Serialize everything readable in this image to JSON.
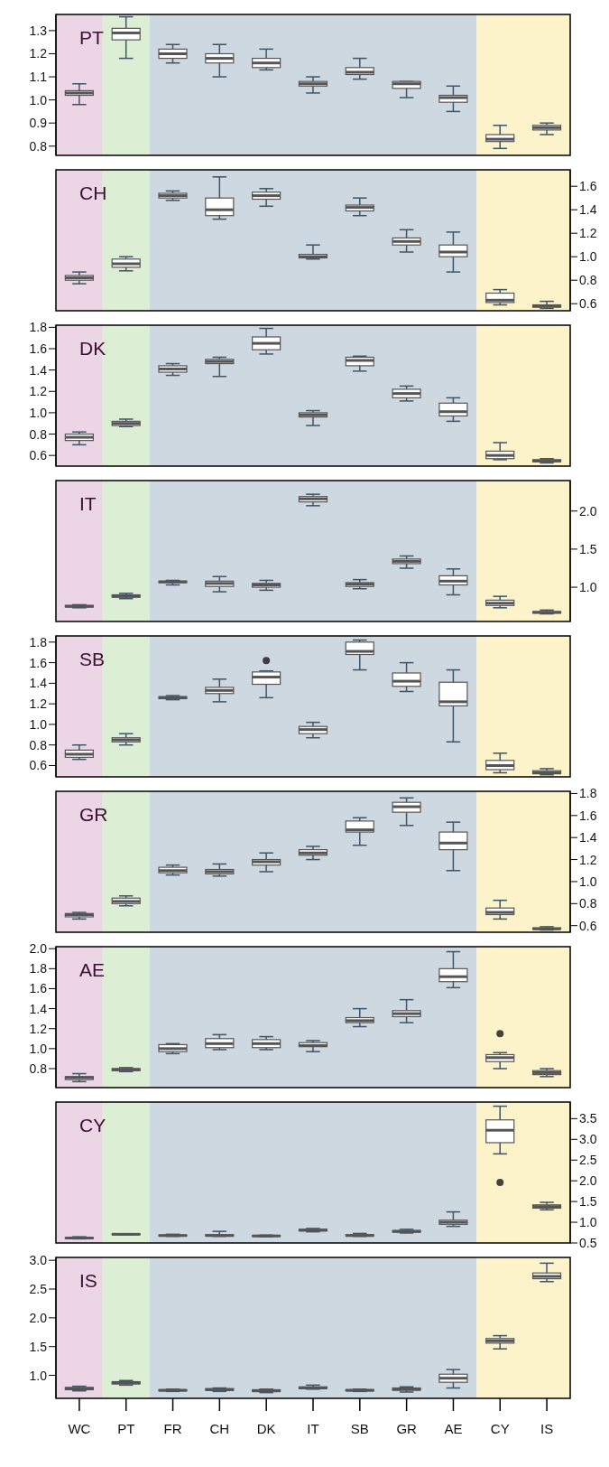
{
  "chart_data": [
    {
      "type": "box",
      "title": "PT",
      "tick_labels": "y",
      "categories": [
        "WC",
        "PT",
        "FR",
        "CH",
        "DK",
        "IT",
        "SB",
        "GR",
        "AE",
        "CY",
        "IS"
      ],
      "ylim": [
        0.76,
        1.37
      ],
      "yticks": [
        0.8,
        0.9,
        {
          "value": 1,
          "label": "1.0"
        },
        1.1,
        1.2,
        1.3
      ],
      "bands": [
        {
          "axis": "x",
          "from": "WC",
          "to": "WC",
          "color": "#ecd5e5"
        },
        {
          "axis": "x",
          "from": "PT",
          "to": "PT",
          "color": "#dcefd4"
        },
        {
          "axis": "x",
          "from": "FR",
          "to": "AE",
          "color": "#cdd8e1"
        },
        {
          "axis": "x",
          "from": "CY",
          "to": "IS",
          "color": "#fcf3cb"
        }
      ],
      "boxes": [
        {
          "low": 0.98,
          "q1": 1.02,
          "median": 1.03,
          "q3": 1.04,
          "high": 1.07
        },
        {
          "low": 1.18,
          "q1": 1.26,
          "median": 1.29,
          "q3": 1.31,
          "high": 1.36
        },
        {
          "low": 1.16,
          "q1": 1.18,
          "median": 1.2,
          "q3": 1.22,
          "high": 1.24
        },
        {
          "low": 1.1,
          "q1": 1.16,
          "median": 1.18,
          "q3": 1.2,
          "high": 1.24
        },
        {
          "low": 1.13,
          "q1": 1.14,
          "median": 1.16,
          "q3": 1.18,
          "high": 1.22
        },
        {
          "low": 1.03,
          "q1": 1.06,
          "median": 1.07,
          "q3": 1.08,
          "high": 1.1
        },
        {
          "low": 1.09,
          "q1": 1.11,
          "median": 1.12,
          "q3": 1.14,
          "high": 1.18
        },
        {
          "low": 1.01,
          "q1": 1.05,
          "median": 1.07,
          "q3": 1.08,
          "high": 1.08
        },
        {
          "low": 0.95,
          "q1": 0.99,
          "median": 1.01,
          "q3": 1.02,
          "high": 1.06
        },
        {
          "low": 0.79,
          "q1": 0.82,
          "median": 0.83,
          "q3": 0.85,
          "high": 0.89
        },
        {
          "low": 0.85,
          "q1": 0.87,
          "median": 0.88,
          "q3": 0.89,
          "high": 0.9
        }
      ]
    },
    {
      "type": "box",
      "title": "CH",
      "tick_labels": "y",
      "categories": [
        "WC",
        "PT",
        "FR",
        "CH",
        "DK",
        "IT",
        "SB",
        "GR",
        "AE",
        "CY",
        "IS"
      ],
      "y2lim": [
        0.54,
        1.74
      ],
      "y2ticks": [
        0.6,
        0.8,
        {
          "value": 1,
          "label": "1.0"
        },
        1.2,
        1.4,
        1.6
      ],
      "bands": [
        {
          "axis": "x",
          "from": "WC",
          "to": "WC",
          "color": "#ecd5e5"
        },
        {
          "axis": "x",
          "from": "PT",
          "to": "PT",
          "color": "#dcefd4"
        },
        {
          "axis": "x",
          "from": "FR",
          "to": "AE",
          "color": "#cdd8e1"
        },
        {
          "axis": "x",
          "from": "CY",
          "to": "IS",
          "color": "#fcf3cb"
        }
      ],
      "series": [
        {
          "axis": "y2",
          "boxes": [
            {
              "low": 0.77,
              "q1": 0.8,
              "median": 0.82,
              "q3": 0.84,
              "high": 0.87
            },
            {
              "low": 0.88,
              "q1": 0.91,
              "median": 0.94,
              "q3": 0.98,
              "high": 1.0
            },
            {
              "low": 1.48,
              "q1": 1.5,
              "median": 1.52,
              "q3": 1.54,
              "high": 1.56
            },
            {
              "low": 1.32,
              "q1": 1.35,
              "median": 1.4,
              "q3": 1.5,
              "high": 1.68
            },
            {
              "low": 1.43,
              "q1": 1.49,
              "median": 1.52,
              "q3": 1.55,
              "high": 1.58
            },
            {
              "low": 0.98,
              "q1": 0.99,
              "median": 1.0,
              "q3": 1.02,
              "high": 1.1
            },
            {
              "low": 1.35,
              "q1": 1.39,
              "median": 1.42,
              "q3": 1.44,
              "high": 1.5
            },
            {
              "low": 1.04,
              "q1": 1.1,
              "median": 1.13,
              "q3": 1.16,
              "high": 1.23
            },
            {
              "low": 0.87,
              "q1": 1.0,
              "median": 1.04,
              "q3": 1.1,
              "high": 1.21
            },
            {
              "low": 0.59,
              "q1": 0.61,
              "median": 0.63,
              "q3": 0.69,
              "high": 0.72
            },
            {
              "low": 0.56,
              "q1": 0.57,
              "median": 0.58,
              "q3": 0.59,
              "high": 0.62
            }
          ]
        }
      ]
    },
    {
      "type": "box",
      "title": "DK",
      "tick_labels": "y",
      "categories": [
        "WC",
        "PT",
        "FR",
        "CH",
        "DK",
        "IT",
        "SB",
        "GR",
        "AE",
        "CY",
        "IS"
      ],
      "ylim": [
        0.5,
        1.82
      ],
      "yticks": [
        0.6,
        0.8,
        {
          "value": 1,
          "label": "1.0"
        },
        1.2,
        1.4,
        1.6,
        1.8
      ],
      "bands": [
        {
          "axis": "x",
          "from": "WC",
          "to": "WC",
          "color": "#ecd5e5"
        },
        {
          "axis": "x",
          "from": "PT",
          "to": "PT",
          "color": "#dcefd4"
        },
        {
          "axis": "x",
          "from": "FR",
          "to": "AE",
          "color": "#cdd8e1"
        },
        {
          "axis": "x",
          "from": "CY",
          "to": "IS",
          "color": "#fcf3cb"
        }
      ],
      "boxes": [
        {
          "low": 0.7,
          "q1": 0.74,
          "median": 0.77,
          "q3": 0.8,
          "high": 0.82
        },
        {
          "low": 0.87,
          "q1": 0.88,
          "median": 0.9,
          "q3": 0.92,
          "high": 0.94
        },
        {
          "low": 1.35,
          "q1": 1.38,
          "median": 1.41,
          "q3": 1.44,
          "high": 1.46
        },
        {
          "low": 1.34,
          "q1": 1.46,
          "median": 1.48,
          "q3": 1.5,
          "high": 1.52
        },
        {
          "low": 1.55,
          "q1": 1.59,
          "median": 1.65,
          "q3": 1.71,
          "high": 1.79
        },
        {
          "low": 0.88,
          "q1": 0.96,
          "median": 0.98,
          "q3": 1.0,
          "high": 1.02
        },
        {
          "low": 1.39,
          "q1": 1.44,
          "median": 1.49,
          "q3": 1.52,
          "high": 1.53
        },
        {
          "low": 1.11,
          "q1": 1.14,
          "median": 1.18,
          "q3": 1.22,
          "high": 1.25
        },
        {
          "low": 0.92,
          "q1": 0.97,
          "median": 1.01,
          "q3": 1.09,
          "high": 1.14
        },
        {
          "low": 0.56,
          "q1": 0.57,
          "median": 0.6,
          "q3": 0.64,
          "high": 0.72
        },
        {
          "low": 0.53,
          "q1": 0.54,
          "median": 0.55,
          "q3": 0.56,
          "high": 0.57
        }
      ]
    },
    {
      "type": "box",
      "title": "IT",
      "tick_labels": "y",
      "categories": [
        "WC",
        "PT",
        "FR",
        "CH",
        "DK",
        "IT",
        "SB",
        "GR",
        "AE",
        "CY",
        "IS"
      ],
      "y2lim": [
        0.55,
        2.4
      ],
      "y2ticks": [
        {
          "value": 1,
          "label": "1.0"
        },
        1.5,
        {
          "value": 2,
          "label": "2.0"
        }
      ],
      "bands": [
        {
          "axis": "x",
          "from": "WC",
          "to": "WC",
          "color": "#ecd5e5"
        },
        {
          "axis": "x",
          "from": "PT",
          "to": "PT",
          "color": "#dcefd4"
        },
        {
          "axis": "x",
          "from": "FR",
          "to": "AE",
          "color": "#cdd8e1"
        },
        {
          "axis": "x",
          "from": "CY",
          "to": "IS",
          "color": "#fcf3cb"
        }
      ],
      "series": [
        {
          "axis": "y2",
          "boxes": [
            {
              "low": 0.73,
              "q1": 0.74,
              "median": 0.75,
              "q3": 0.76,
              "high": 0.77
            },
            {
              "low": 0.85,
              "q1": 0.87,
              "median": 0.88,
              "q3": 0.9,
              "high": 0.92
            },
            {
              "low": 1.03,
              "q1": 1.06,
              "median": 1.07,
              "q3": 1.08,
              "high": 1.09
            },
            {
              "low": 0.94,
              "q1": 1.01,
              "median": 1.05,
              "q3": 1.08,
              "high": 1.14
            },
            {
              "low": 0.96,
              "q1": 1.0,
              "median": 1.03,
              "q3": 1.05,
              "high": 1.09
            },
            {
              "low": 2.07,
              "q1": 2.12,
              "median": 2.16,
              "q3": 2.19,
              "high": 2.22
            },
            {
              "low": 0.98,
              "q1": 1.01,
              "median": 1.04,
              "q3": 1.06,
              "high": 1.1
            },
            {
              "low": 1.25,
              "q1": 1.31,
              "median": 1.34,
              "q3": 1.37,
              "high": 1.41
            },
            {
              "low": 0.9,
              "q1": 1.03,
              "median": 1.08,
              "q3": 1.15,
              "high": 1.24
            },
            {
              "low": 0.73,
              "q1": 0.76,
              "median": 0.79,
              "q3": 0.83,
              "high": 0.88
            },
            {
              "low": 0.65,
              "q1": 0.66,
              "median": 0.67,
              "q3": 0.68,
              "high": 0.7
            }
          ]
        }
      ]
    },
    {
      "type": "box",
      "title": "SB",
      "tick_labels": "y",
      "categories": [
        "WC",
        "PT",
        "FR",
        "CH",
        "DK",
        "IT",
        "SB",
        "GR",
        "AE",
        "CY",
        "IS"
      ],
      "ylim": [
        0.49,
        1.86
      ],
      "yticks": [
        0.6,
        0.8,
        {
          "value": 1,
          "label": "1.0"
        },
        1.2,
        1.4,
        1.6,
        1.8
      ],
      "bands": [
        {
          "axis": "x",
          "from": "WC",
          "to": "WC",
          "color": "#ecd5e5"
        },
        {
          "axis": "x",
          "from": "PT",
          "to": "PT",
          "color": "#dcefd4"
        },
        {
          "axis": "x",
          "from": "FR",
          "to": "AE",
          "color": "#cdd8e1"
        },
        {
          "axis": "x",
          "from": "CY",
          "to": "IS",
          "color": "#fcf3cb"
        }
      ],
      "boxes": [
        {
          "low": 0.66,
          "q1": 0.68,
          "median": 0.71,
          "q3": 0.75,
          "high": 0.8
        },
        {
          "low": 0.8,
          "q1": 0.83,
          "median": 0.85,
          "q3": 0.87,
          "high": 0.91
        },
        {
          "low": 1.24,
          "q1": 1.25,
          "median": 1.26,
          "q3": 1.27,
          "high": 1.28
        },
        {
          "low": 1.22,
          "q1": 1.3,
          "median": 1.33,
          "q3": 1.36,
          "high": 1.44
        },
        {
          "low": 1.26,
          "q1": 1.39,
          "median": 1.46,
          "q3": 1.51,
          "high": 1.52,
          "outliers": [
            1.62
          ]
        },
        {
          "low": 0.87,
          "q1": 0.91,
          "median": 0.95,
          "q3": 0.98,
          "high": 1.02
        },
        {
          "low": 1.53,
          "q1": 1.68,
          "median": 1.71,
          "q3": 1.8,
          "high": 1.82
        },
        {
          "low": 1.32,
          "q1": 1.37,
          "median": 1.42,
          "q3": 1.5,
          "high": 1.6
        },
        {
          "low": 0.83,
          "q1": 1.18,
          "median": 1.22,
          "q3": 1.41,
          "high": 1.53
        },
        {
          "low": 0.53,
          "q1": 0.56,
          "median": 0.6,
          "q3": 0.65,
          "high": 0.72
        },
        {
          "low": 0.51,
          "q1": 0.52,
          "median": 0.53,
          "q3": 0.55,
          "high": 0.57
        }
      ]
    },
    {
      "type": "box",
      "title": "GR",
      "tick_labels": "y",
      "categories": [
        "WC",
        "PT",
        "FR",
        "CH",
        "DK",
        "IT",
        "SB",
        "GR",
        "AE",
        "CY",
        "IS"
      ],
      "y2lim": [
        0.54,
        1.82
      ],
      "y2ticks": [
        0.6,
        0.8,
        {
          "value": 1,
          "label": "1.0"
        },
        1.2,
        1.4,
        1.6,
        1.8
      ],
      "bands": [
        {
          "axis": "x",
          "from": "WC",
          "to": "WC",
          "color": "#ecd5e5"
        },
        {
          "axis": "x",
          "from": "PT",
          "to": "PT",
          "color": "#dcefd4"
        },
        {
          "axis": "x",
          "from": "FR",
          "to": "AE",
          "color": "#cdd8e1"
        },
        {
          "axis": "x",
          "from": "CY",
          "to": "IS",
          "color": "#fcf3cb"
        }
      ],
      "series": [
        {
          "axis": "y2",
          "boxes": [
            {
              "low": 0.66,
              "q1": 0.68,
              "median": 0.7,
              "q3": 0.71,
              "high": 0.72
            },
            {
              "low": 0.78,
              "q1": 0.8,
              "median": 0.82,
              "q3": 0.85,
              "high": 0.87
            },
            {
              "low": 1.06,
              "q1": 1.08,
              "median": 1.1,
              "q3": 1.13,
              "high": 1.15
            },
            {
              "low": 1.05,
              "q1": 1.07,
              "median": 1.09,
              "q3": 1.11,
              "high": 1.16
            },
            {
              "low": 1.09,
              "q1": 1.15,
              "median": 1.18,
              "q3": 1.2,
              "high": 1.26
            },
            {
              "low": 1.2,
              "q1": 1.24,
              "median": 1.26,
              "q3": 1.29,
              "high": 1.32
            },
            {
              "low": 1.33,
              "q1": 1.45,
              "median": 1.47,
              "q3": 1.55,
              "high": 1.58
            },
            {
              "low": 1.51,
              "q1": 1.63,
              "median": 1.68,
              "q3": 1.72,
              "high": 1.76
            },
            {
              "low": 1.1,
              "q1": 1.29,
              "median": 1.35,
              "q3": 1.45,
              "high": 1.54
            },
            {
              "low": 0.66,
              "q1": 0.7,
              "median": 0.72,
              "q3": 0.76,
              "high": 0.83
            },
            {
              "low": 0.56,
              "q1": 0.57,
              "median": 0.57,
              "q3": 0.58,
              "high": 0.59
            }
          ]
        }
      ]
    },
    {
      "type": "box",
      "title": "AE",
      "tick_labels": "y",
      "categories": [
        "WC",
        "PT",
        "FR",
        "CH",
        "DK",
        "IT",
        "SB",
        "GR",
        "AE",
        "CY",
        "IS"
      ],
      "ylim": [
        0.61,
        2.02
      ],
      "yticks": [
        0.8,
        {
          "value": 1,
          "label": "1.0"
        },
        1.2,
        1.4,
        1.6,
        1.8,
        {
          "value": 2,
          "label": "2.0"
        }
      ],
      "bands": [
        {
          "axis": "x",
          "from": "WC",
          "to": "WC",
          "color": "#ecd5e5"
        },
        {
          "axis": "x",
          "from": "PT",
          "to": "PT",
          "color": "#dcefd4"
        },
        {
          "axis": "x",
          "from": "FR",
          "to": "AE",
          "color": "#cdd8e1"
        },
        {
          "axis": "x",
          "from": "CY",
          "to": "IS",
          "color": "#fcf3cb"
        }
      ],
      "boxes": [
        {
          "low": 0.67,
          "q1": 0.69,
          "median": 0.71,
          "q3": 0.72,
          "high": 0.75
        },
        {
          "low": 0.77,
          "q1": 0.78,
          "median": 0.79,
          "q3": 0.8,
          "high": 0.81
        },
        {
          "low": 0.95,
          "q1": 0.97,
          "median": 1.0,
          "q3": 1.04,
          "high": 1.05
        },
        {
          "low": 0.99,
          "q1": 1.01,
          "median": 1.05,
          "q3": 1.1,
          "high": 1.14
        },
        {
          "low": 0.99,
          "q1": 1.01,
          "median": 1.05,
          "q3": 1.09,
          "high": 1.12
        },
        {
          "low": 0.97,
          "q1": 1.02,
          "median": 1.03,
          "q3": 1.06,
          "high": 1.08
        },
        {
          "low": 1.22,
          "q1": 1.26,
          "median": 1.28,
          "q3": 1.31,
          "high": 1.4
        },
        {
          "low": 1.26,
          "q1": 1.32,
          "median": 1.35,
          "q3": 1.38,
          "high": 1.49
        },
        {
          "low": 1.61,
          "q1": 1.67,
          "median": 1.72,
          "q3": 1.8,
          "high": 1.97
        },
        {
          "low": 0.8,
          "q1": 0.87,
          "median": 0.91,
          "q3": 0.94,
          "high": 0.96,
          "outliers": [
            1.15
          ]
        },
        {
          "low": 0.72,
          "q1": 0.74,
          "median": 0.76,
          "q3": 0.78,
          "high": 0.8
        }
      ]
    },
    {
      "type": "box",
      "title": "CY",
      "tick_labels": "y",
      "categories": [
        "WC",
        "PT",
        "FR",
        "CH",
        "DK",
        "IT",
        "SB",
        "GR",
        "AE",
        "CY",
        "IS"
      ],
      "y2lim": [
        0.5,
        3.9
      ],
      "y2ticks": [
        0.5,
        {
          "value": 1,
          "label": "1.0"
        },
        1.5,
        {
          "value": 2,
          "label": "2.0"
        },
        2.5,
        {
          "value": 3,
          "label": "3.0"
        },
        3.5
      ],
      "bands": [
        {
          "axis": "x",
          "from": "WC",
          "to": "WC",
          "color": "#ecd5e5"
        },
        {
          "axis": "x",
          "from": "PT",
          "to": "PT",
          "color": "#dcefd4"
        },
        {
          "axis": "x",
          "from": "FR",
          "to": "AE",
          "color": "#cdd8e1"
        },
        {
          "axis": "x",
          "from": "CY",
          "to": "IS",
          "color": "#fcf3cb"
        }
      ],
      "series": [
        {
          "axis": "y2",
          "boxes": [
            {
              "low": 0.6,
              "q1": 0.61,
              "median": 0.62,
              "q3": 0.63,
              "high": 0.65
            },
            {
              "low": 0.7,
              "q1": 0.7,
              "median": 0.71,
              "q3": 0.72,
              "high": 0.72
            },
            {
              "low": 0.66,
              "q1": 0.67,
              "median": 0.68,
              "q3": 0.69,
              "high": 0.71
            },
            {
              "low": 0.66,
              "q1": 0.67,
              "median": 0.68,
              "q3": 0.7,
              "high": 0.78
            },
            {
              "low": 0.65,
              "q1": 0.66,
              "median": 0.67,
              "q3": 0.68,
              "high": 0.69
            },
            {
              "low": 0.77,
              "q1": 0.79,
              "median": 0.81,
              "q3": 0.83,
              "high": 0.85
            },
            {
              "low": 0.66,
              "q1": 0.67,
              "median": 0.68,
              "q3": 0.7,
              "high": 0.73
            },
            {
              "low": 0.74,
              "q1": 0.76,
              "median": 0.78,
              "q3": 0.8,
              "high": 0.83
            },
            {
              "low": 0.9,
              "q1": 0.95,
              "median": 1.0,
              "q3": 1.05,
              "high": 1.25
            },
            {
              "low": 2.65,
              "q1": 2.92,
              "median": 3.22,
              "q3": 3.47,
              "high": 3.8,
              "outliers": [
                1.96
              ]
            },
            {
              "low": 1.3,
              "q1": 1.34,
              "median": 1.38,
              "q3": 1.42,
              "high": 1.48
            }
          ]
        }
      ]
    },
    {
      "type": "box",
      "title": "IS",
      "categories": [
        "WC",
        "PT",
        "FR",
        "CH",
        "DK",
        "IT",
        "SB",
        "GR",
        "AE",
        "CY",
        "IS"
      ],
      "ylim": [
        0.6,
        3.05
      ],
      "yticks": [
        {
          "value": 1,
          "label": "1.0"
        },
        1.5,
        {
          "value": 2,
          "label": "2.0"
        },
        2.5,
        {
          "value": 3,
          "label": "3.0"
        }
      ],
      "bands": [
        {
          "axis": "x",
          "from": "WC",
          "to": "WC",
          "color": "#ecd5e5"
        },
        {
          "axis": "x",
          "from": "PT",
          "to": "PT",
          "color": "#dcefd4"
        },
        {
          "axis": "x",
          "from": "FR",
          "to": "AE",
          "color": "#cdd8e1"
        },
        {
          "axis": "x",
          "from": "CY",
          "to": "IS",
          "color": "#fcf3cb"
        }
      ],
      "boxes": [
        {
          "low": 0.73,
          "q1": 0.75,
          "median": 0.77,
          "q3": 0.79,
          "high": 0.81
        },
        {
          "low": 0.83,
          "q1": 0.85,
          "median": 0.87,
          "q3": 0.89,
          "high": 0.91
        },
        {
          "low": 0.72,
          "q1": 0.73,
          "median": 0.74,
          "q3": 0.75,
          "high": 0.76
        },
        {
          "low": 0.72,
          "q1": 0.74,
          "median": 0.75,
          "q3": 0.77,
          "high": 0.78
        },
        {
          "low": 0.7,
          "q1": 0.72,
          "median": 0.73,
          "q3": 0.75,
          "high": 0.76
        },
        {
          "low": 0.76,
          "q1": 0.77,
          "median": 0.78,
          "q3": 0.8,
          "high": 0.83
        },
        {
          "low": 0.72,
          "q1": 0.73,
          "median": 0.74,
          "q3": 0.75,
          "high": 0.76
        },
        {
          "low": 0.71,
          "q1": 0.74,
          "median": 0.76,
          "q3": 0.78,
          "high": 0.8
        },
        {
          "low": 0.78,
          "q1": 0.88,
          "median": 0.95,
          "q3": 1.02,
          "high": 1.1
        },
        {
          "low": 1.46,
          "q1": 1.56,
          "median": 1.6,
          "q3": 1.64,
          "high": 1.69
        },
        {
          "low": 2.63,
          "q1": 2.68,
          "median": 2.72,
          "q3": 2.78,
          "high": 2.95
        }
      ]
    }
  ]
}
